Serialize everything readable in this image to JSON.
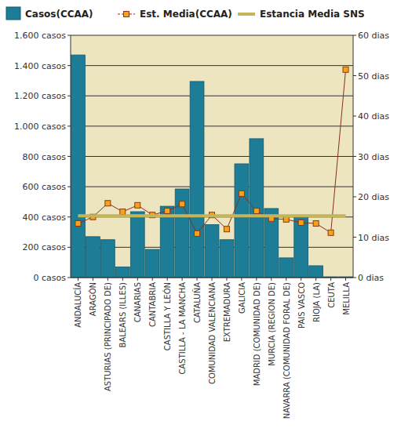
{
  "chart_data": {
    "type": "bar",
    "categories": [
      "ANDALUCÍA",
      "ARAGÓN",
      "ASTURIAS (PRINCIPADO DE)",
      "BALEARS (ILLES)",
      "CANARIAS",
      "CANTABRIA",
      "CASTILLA Y LEÓN",
      "CASTILLA - LA MANCHA",
      "CATALUÑA",
      "COMUNIDAD VALENCIANA",
      "EXTREMADURA",
      "GALICIA",
      "MADRID (COMUNIDAD DE)",
      "MURCIA (REGION DE)",
      "NAVARRA (COMUNIDAD FORAL DE)",
      "PAIS VASCO",
      "RIOJA (LA)",
      "CEUTA",
      "MELILLA"
    ],
    "series": [
      {
        "name": "Casos(CCAA)",
        "type": "bar",
        "color": "#1e7d96",
        "values": [
          1470,
          270,
          250,
          70,
          435,
          186,
          471,
          585,
          1295,
          350,
          250,
          751,
          917,
          456,
          130,
          400,
          78,
          5,
          5
        ]
      },
      {
        "name": "Est. Media(CCAA)",
        "type": "line",
        "color": "#8b2e1e",
        "marker": "square",
        "axis": "y2",
        "values": [
          13.4,
          15.0,
          18.4,
          16.3,
          17.9,
          15.5,
          16.5,
          18.2,
          10.9,
          15.5,
          12.0,
          20.8,
          16.5,
          14.6,
          14.4,
          13.6,
          13.4,
          11.1,
          51.5
        ]
      },
      {
        "name": "Estancia Media SNS",
        "type": "line",
        "color": "#c4b55a",
        "marker": "none",
        "axis": "y2",
        "values": [
          15.3,
          15.3,
          15.3,
          15.3,
          15.3,
          15.3,
          15.3,
          15.3,
          15.3,
          15.3,
          15.3,
          15.3,
          15.3,
          15.3,
          15.3,
          15.3,
          15.3,
          15.3,
          15.3
        ]
      }
    ],
    "ylim": [
      0,
      1600
    ],
    "yticks": [
      {
        "value": 0,
        "label": "0 casos"
      },
      {
        "value": 200,
        "label": "200 casos"
      },
      {
        "value": 400,
        "label": "400 casos"
      },
      {
        "value": 600,
        "label": "600 casos"
      },
      {
        "value": 800,
        "label": "800 casos"
      },
      {
        "value": 1000,
        "label": "1.000 casos"
      },
      {
        "value": 1200,
        "label": "1.200 casos"
      },
      {
        "value": 1400,
        "label": "1.400 casos"
      },
      {
        "value": 1600,
        "label": "1.600 casos"
      }
    ],
    "y2lim": [
      0,
      60
    ],
    "y2ticks": [
      {
        "value": 0,
        "label": "0 dias"
      },
      {
        "value": 10,
        "label": "10 dias"
      },
      {
        "value": 20,
        "label": "20 dias"
      },
      {
        "value": 30,
        "label": "30 dias"
      },
      {
        "value": 40,
        "label": "40 dias"
      },
      {
        "value": 50,
        "label": "50 dias"
      },
      {
        "value": 60,
        "label": "60 dias"
      }
    ],
    "grid": true,
    "legend": "top"
  }
}
